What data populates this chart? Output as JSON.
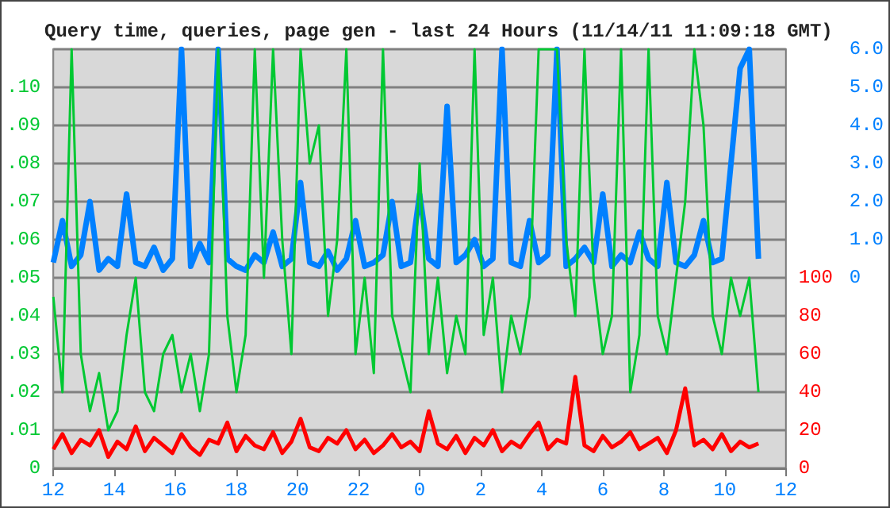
{
  "chart_data": {
    "type": "line",
    "title": "Query time, queries, page gen - last 24 Hours (11/14/11 11:09:18 GMT)",
    "x": [
      "--11-13T12:00",
      "--11-13T12:18",
      "--11-13T12:36",
      "--11-13T12:54",
      "--11-13T13:12",
      "--11-13T13:30",
      "--11-13T13:48",
      "--11-13T14:06",
      "--11-13T14:24",
      "--11-13T14:42",
      "--11-13T15:00",
      "--11-13T15:18",
      "--11-13T15:36",
      "--11-13T15:54",
      "--11-13T16:12",
      "--11-13T16:30",
      "--11-13T16:48",
      "--11-13T17:06",
      "--11-13T17:24",
      "--11-13T17:42",
      "--11-13T18:00",
      "--11-13T18:18",
      "--11-13T18:36",
      "--11-13T18:54",
      "--11-13T19:12",
      "--11-13T19:30",
      "--11-13T19:48",
      "--11-13T20:06",
      "--11-13T20:24",
      "--11-13T20:42",
      "--11-13T21:00",
      "--11-13T21:18",
      "--11-13T21:36",
      "--11-13T21:54",
      "--11-13T22:12",
      "--11-13T22:30",
      "--11-13T22:48",
      "--11-13T23:06",
      "--11-13T23:24",
      "--11-13T23:42",
      "--11-14T00:00",
      "--11-14T00:18",
      "--11-14T00:36",
      "--11-14T00:54",
      "--11-14T01:12",
      "--11-14T01:30",
      "--11-14T01:48",
      "--11-14T02:06",
      "--11-14T02:24",
      "--11-14T02:42",
      "--11-14T03:00",
      "--11-14T03:18",
      "--11-14T03:36",
      "--11-14T03:54",
      "--11-14T04:12",
      "--11-14T04:30",
      "--11-14T04:48",
      "--11-14T05:06",
      "--11-14T05:24",
      "--11-14T05:42",
      "--11-14T06:00",
      "--11-14T06:18",
      "--11-14T06:36",
      "--11-14T06:54",
      "--11-14T07:12",
      "--11-14T07:30",
      "--11-14T07:48",
      "--11-14T08:06",
      "--11-14T08:24",
      "--11-14T08:42",
      "--11-14T09:00",
      "--11-14T09:18",
      "--11-14T09:36",
      "--11-14T09:54",
      "--11-14T10:12",
      "--11-14T10:30",
      "--11-14T10:48",
      "--11-14T11:06"
    ],
    "series": [
      {
        "color": "#00c832",
        "values": [
          0.045,
          0.02,
          0.11,
          0.03,
          0.015,
          0.025,
          0.01,
          0.015,
          0.035,
          0.05,
          0.02,
          0.015,
          0.03,
          0.035,
          0.02,
          0.03,
          0.015,
          0.03,
          0.11,
          0.04,
          0.02,
          0.035,
          0.11,
          0.05,
          0.11,
          0.06,
          0.03,
          0.11,
          0.08,
          0.09,
          0.04,
          0.06,
          0.11,
          0.03,
          0.05,
          0.025,
          0.11,
          0.04,
          0.03,
          0.02,
          0.08,
          0.03,
          0.05,
          0.025,
          0.04,
          0.03,
          0.11,
          0.035,
          0.05,
          0.02,
          0.04,
          0.03,
          0.045,
          0.11,
          0.11,
          0.11,
          0.06,
          0.04,
          0.11,
          0.05,
          0.03,
          0.04,
          0.11,
          0.02,
          0.035,
          0.11,
          0.04,
          0.03,
          0.05,
          0.07,
          0.11,
          0.09,
          0.04,
          0.03,
          0.05,
          0.04,
          0.05,
          0.02
        ]
      },
      {
        "color": "#ff0000",
        "axis": "y2",
        "values": [
          10,
          18,
          8,
          15,
          12,
          20,
          6,
          14,
          10,
          22,
          9,
          16,
          12,
          8,
          18,
          11,
          7,
          15,
          13,
          24,
          9,
          17,
          12,
          10,
          19,
          8,
          14,
          26,
          11,
          9,
          16,
          13,
          20,
          10,
          15,
          8,
          12,
          18,
          11,
          14,
          9,
          30,
          13,
          10,
          17,
          8,
          16,
          12,
          20,
          9,
          14,
          11,
          18,
          24,
          10,
          15,
          13,
          48,
          12,
          9,
          17,
          11,
          14,
          19,
          10,
          13,
          16,
          8,
          20,
          42,
          12,
          15,
          10,
          18,
          9,
          14,
          11,
          13
        ]
      },
      {
        "color": "#0080ff",
        "axis": "y3",
        "values": [
          0.4,
          1.5,
          0.3,
          0.6,
          2.0,
          0.2,
          0.5,
          0.3,
          2.2,
          0.4,
          0.3,
          0.8,
          0.2,
          0.5,
          6.0,
          0.3,
          0.9,
          0.4,
          6.0,
          0.5,
          0.3,
          0.2,
          0.6,
          0.4,
          1.2,
          0.3,
          0.5,
          2.5,
          0.4,
          0.3,
          0.7,
          0.2,
          0.5,
          1.5,
          0.3,
          0.4,
          0.6,
          2.0,
          0.3,
          0.4,
          2.2,
          0.5,
          0.3,
          4.5,
          0.4,
          0.6,
          1.0,
          0.3,
          0.5,
          6.0,
          0.4,
          0.3,
          1.5,
          0.4,
          0.6,
          6.0,
          0.3,
          0.5,
          0.8,
          0.4,
          2.2,
          0.3,
          0.6,
          0.4,
          1.2,
          0.5,
          0.3,
          2.5,
          0.4,
          0.3,
          0.6,
          1.5,
          0.4,
          0.5,
          3.0,
          5.5,
          6.0,
          0.5
        ]
      }
    ],
    "xlim": [
      "--11-13T12:00",
      "--11-14T12:00"
    ],
    "xticks": [
      {
        "value": "--11-13T12:00",
        "label": "12"
      },
      {
        "value": "--11-13T14:00",
        "label": "14"
      },
      {
        "value": "--11-13T16:00",
        "label": "16"
      },
      {
        "value": "--11-13T18:00",
        "label": "18"
      },
      {
        "value": "--11-13T20:00",
        "label": "20"
      },
      {
        "value": "--11-13T22:00",
        "label": "22"
      },
      {
        "value": "--11-14T00:00",
        "label": "0"
      },
      {
        "value": "--11-14T02:00",
        "label": "2"
      },
      {
        "value": "--11-14T04:00",
        "label": "4"
      },
      {
        "value": "--11-14T06:00",
        "label": "6"
      },
      {
        "value": "--11-14T08:00",
        "label": "8"
      },
      {
        "value": "--11-14T10:00",
        "label": "10"
      },
      {
        "value": "--11-14T12:00",
        "label": "12"
      }
    ],
    "ylim": [
      0,
      0.11
    ],
    "yticks": [
      0,
      {
        "value": 0.01,
        "label": ".01"
      },
      {
        "value": 0.02,
        "label": ".02"
      },
      {
        "value": 0.03,
        "label": ".03"
      },
      {
        "value": 0.04,
        "label": ".04"
      },
      {
        "value": 0.05,
        "label": ".05"
      },
      {
        "value": 0.06,
        "label": ".06"
      },
      {
        "value": 0.07,
        "label": ".07"
      },
      {
        "value": 0.08,
        "label": ".08"
      },
      {
        "value": 0.09,
        "label": ".09"
      },
      {
        "value": 0.1,
        "label": ".10"
      },
      {
        "value": 0.11,
        "label": null
      }
    ],
    "y2lim": [
      0,
      220
    ],
    "y2ticks": [
      0,
      20,
      40,
      60,
      80,
      100
    ],
    "y3lim": [
      -5,
      6
    ],
    "y3ticks": [
      0,
      {
        "value": 1,
        "label": "1.0"
      },
      {
        "value": 2,
        "label": "2.0"
      },
      {
        "value": 3,
        "label": "3.0"
      },
      {
        "value": 4,
        "label": "4.0"
      },
      {
        "value": 5,
        "label": "5.0"
      },
      {
        "value": 6,
        "label": "6.0"
      }
    ],
    "grid": "y",
    "marker": "none",
    "line_style": "solid"
  }
}
